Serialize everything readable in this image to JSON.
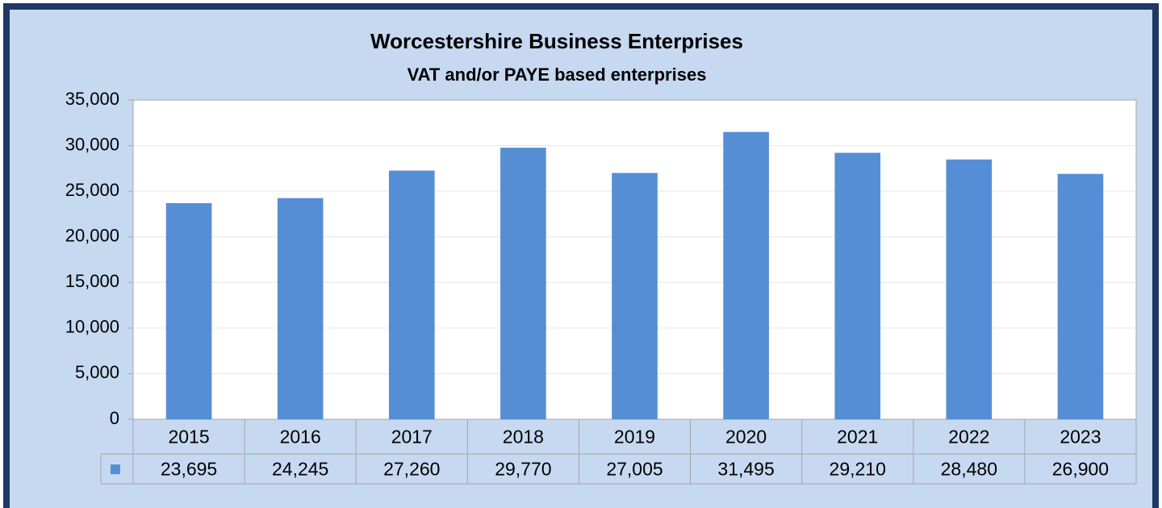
{
  "chart_data": {
    "type": "bar",
    "title": "Worcestershire Business Enterprises",
    "subtitle": "VAT and/or PAYE based enterprises",
    "categories": [
      "2015",
      "2016",
      "2017",
      "2018",
      "2019",
      "2020",
      "2021",
      "2022",
      "2023"
    ],
    "values": [
      23695,
      24245,
      27260,
      29770,
      27005,
      31495,
      29210,
      28480,
      26900
    ],
    "value_labels": [
      "23,695",
      "24,245",
      "27,260",
      "29,770",
      "27,005",
      "31,495",
      "29,210",
      "28,480",
      "26,900"
    ],
    "color": "#558ed5",
    "ylim": [
      0,
      35000
    ],
    "yticks": [
      0,
      {
        "value": 5000,
        "label": "5,000"
      },
      {
        "value": 10000,
        "label": "10,000"
      },
      {
        "value": 15000,
        "label": "15,000"
      },
      {
        "value": 20000,
        "label": "20,000"
      },
      {
        "value": 25000,
        "label": "25,000"
      },
      {
        "value": 30000,
        "label": "30,000"
      },
      {
        "value": 35000,
        "label": "35,000"
      }
    ],
    "grid": true
  }
}
